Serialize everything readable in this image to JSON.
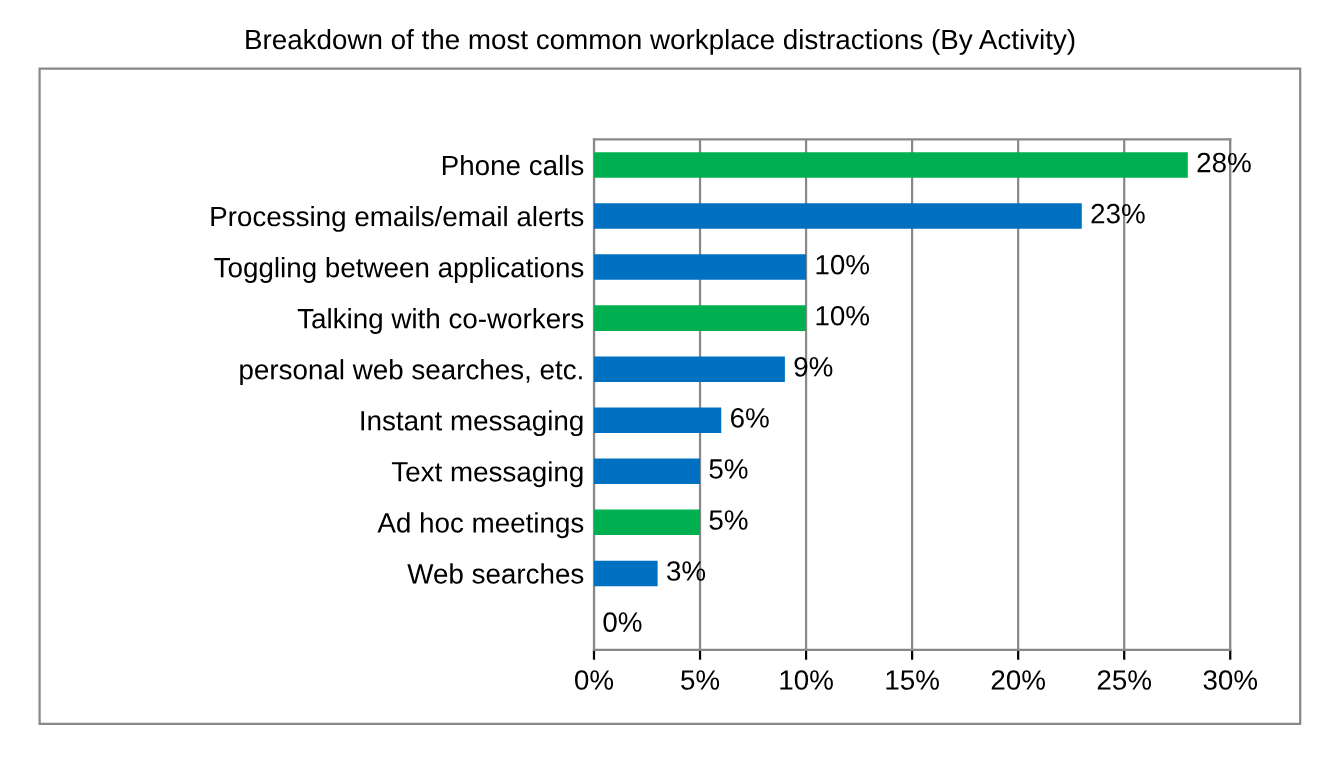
{
  "chart_data": {
    "type": "bar",
    "orientation": "horizontal",
    "title": "Breakdown of the most common workplace distractions (By Activity)",
    "categories": [
      "Phone calls",
      "Processing emails/email alerts",
      "Toggling between applications",
      "Talking with co-workers",
      "personal web searches, etc.",
      "Instant messaging",
      "Text messaging",
      "Ad hoc meetings",
      "Web searches",
      null
    ],
    "values": [
      28,
      23,
      10,
      10,
      9,
      6,
      5,
      5,
      3,
      0
    ],
    "value_labels": [
      "28%",
      "23%",
      "10%",
      "10%",
      "9%",
      "6%",
      "5%",
      "5%",
      "3%",
      "0%"
    ],
    "colors": [
      "#00b050",
      "#0070c0",
      "#0070c0",
      "#00b050",
      "#0070c0",
      "#0070c0",
      "#0070c0",
      "#00b050",
      "#0070c0",
      "#0070c0"
    ],
    "xlim": [
      0,
      30
    ],
    "xticks": [
      {
        "value": 0,
        "label": "0%"
      },
      {
        "value": 5,
        "label": "5%"
      },
      {
        "value": 10,
        "label": "10%"
      },
      {
        "value": 15,
        "label": "15%"
      },
      {
        "value": 20,
        "label": "20%"
      },
      {
        "value": 25,
        "label": "25%"
      },
      {
        "value": 30,
        "label": "30%"
      }
    ],
    "grid": "x",
    "legend": false
  }
}
